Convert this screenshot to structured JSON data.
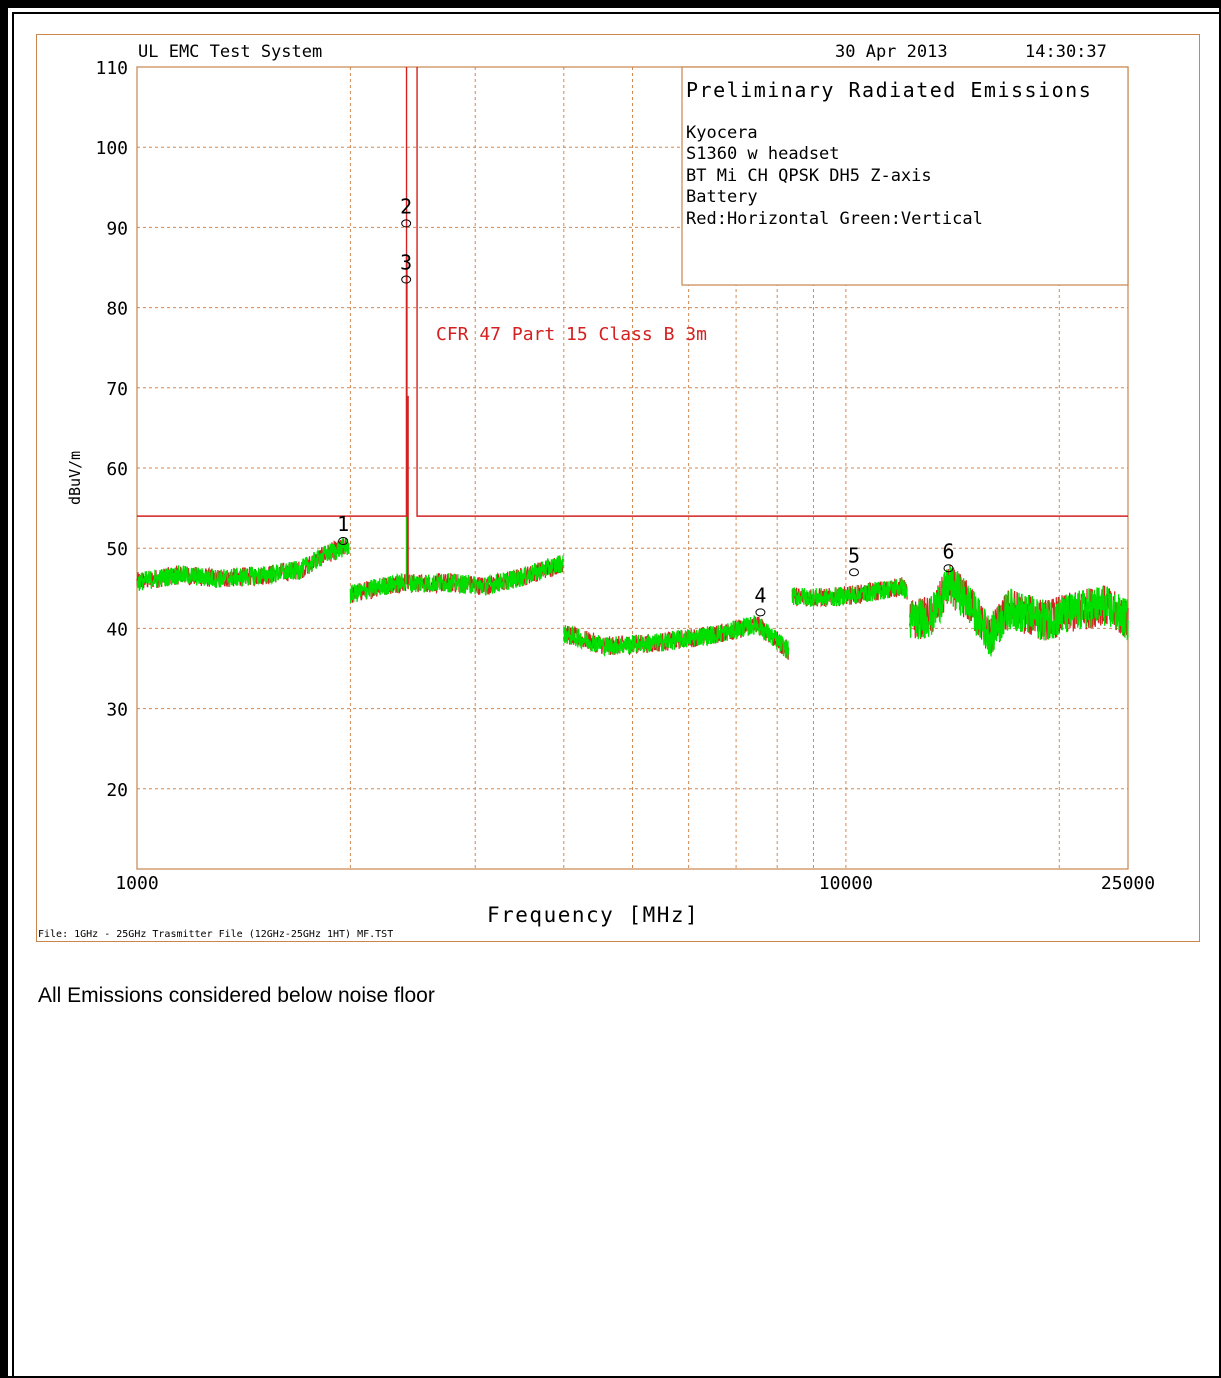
{
  "chart_data": {
    "type": "line",
    "header": {
      "system": "UL EMC Test System",
      "date": "30 Apr 2013",
      "time": "14:30:37"
    },
    "info_box": {
      "title": "Preliminary Radiated Emissions",
      "lines": [
        "Kyocera",
        "S1360 w headset",
        "BT Mi CH QPSK DH5 Z-axis",
        "Battery",
        "Red:Horizontal Green:Vertical"
      ]
    },
    "limit_label": "CFR 47 Part 15  Class B 3m",
    "ylabel": "dBuV/m",
    "xlabel": "Frequency [MHz]",
    "file_label": "File: 1GHz - 25GHz Trasmitter File (12GHz-25GHz 1HT) MF.TST",
    "x_scale": "log",
    "xlim": [
      1000,
      25000
    ],
    "ylim": [
      10,
      110
    ],
    "y_ticks": [
      "110",
      "100",
      "90",
      "80",
      "70",
      "60",
      "50",
      "40",
      "30",
      "20"
    ],
    "x_tick_labels": [
      "1000",
      "10000",
      "25000"
    ],
    "limit_line": {
      "value": 54,
      "notch_range": [
        2400,
        2483.5
      ],
      "color": "#d42020"
    },
    "series": [
      {
        "name": "Horizontal",
        "color": "#d42020"
      },
      {
        "name": "Vertical",
        "color": "#00e000"
      }
    ],
    "trace_segments": [
      {
        "x": [
          1000,
          1150,
          1300,
          1500,
          1700,
          1850,
          1990
        ],
        "y": [
          45.8,
          46.7,
          46.2,
          46.6,
          47.3,
          49.3,
          50.3
        ]
      },
      {
        "x": [
          2000,
          2200,
          2395
        ],
        "y": [
          44.2,
          45.2,
          45.8
        ]
      },
      {
        "x": [
          2405,
          2750,
          3100,
          3500,
          3990
        ],
        "y": [
          45.6,
          45.7,
          45.3,
          46.4,
          48.2
        ]
      },
      {
        "x": [
          4000,
          4600,
          5400,
          6600,
          7500,
          8300
        ],
        "y": [
          39.3,
          37.8,
          38.2,
          39.3,
          40.5,
          37.2
        ]
      },
      {
        "x": [
          8400,
          9400,
          10500,
          12000,
          12200
        ],
        "y": [
          44.0,
          43.8,
          44.3,
          45.2,
          44.5
        ]
      },
      {
        "x": [
          12300,
          13200,
          14000,
          14800,
          16000,
          17000,
          19000,
          21000,
          23000,
          25000
        ],
        "y": [
          41.0,
          41.5,
          45.5,
          43.5,
          39.0,
          42.5,
          41.0,
          42.0,
          43.0,
          41.0
        ]
      }
    ],
    "peaks": [
      {
        "x": 2402,
        "y": 86.5,
        "color": "#00e000"
      },
      {
        "x": 2410,
        "y": 69.0,
        "color": "#d42020"
      }
    ],
    "markers": [
      {
        "label": "1",
        "x": 1960,
        "y": 50.4
      },
      {
        "label": "2",
        "x": 2405,
        "y": 90.0
      },
      {
        "label": "3",
        "x": 2405,
        "y": 83.0
      },
      {
        "label": "4",
        "x": 7600,
        "y": 41.5
      },
      {
        "label": "5",
        "x": 10300,
        "y": 46.5
      },
      {
        "label": "6",
        "x": 14000,
        "y": 47.0
      }
    ]
  },
  "note": "All Emissions considered below noise floor"
}
